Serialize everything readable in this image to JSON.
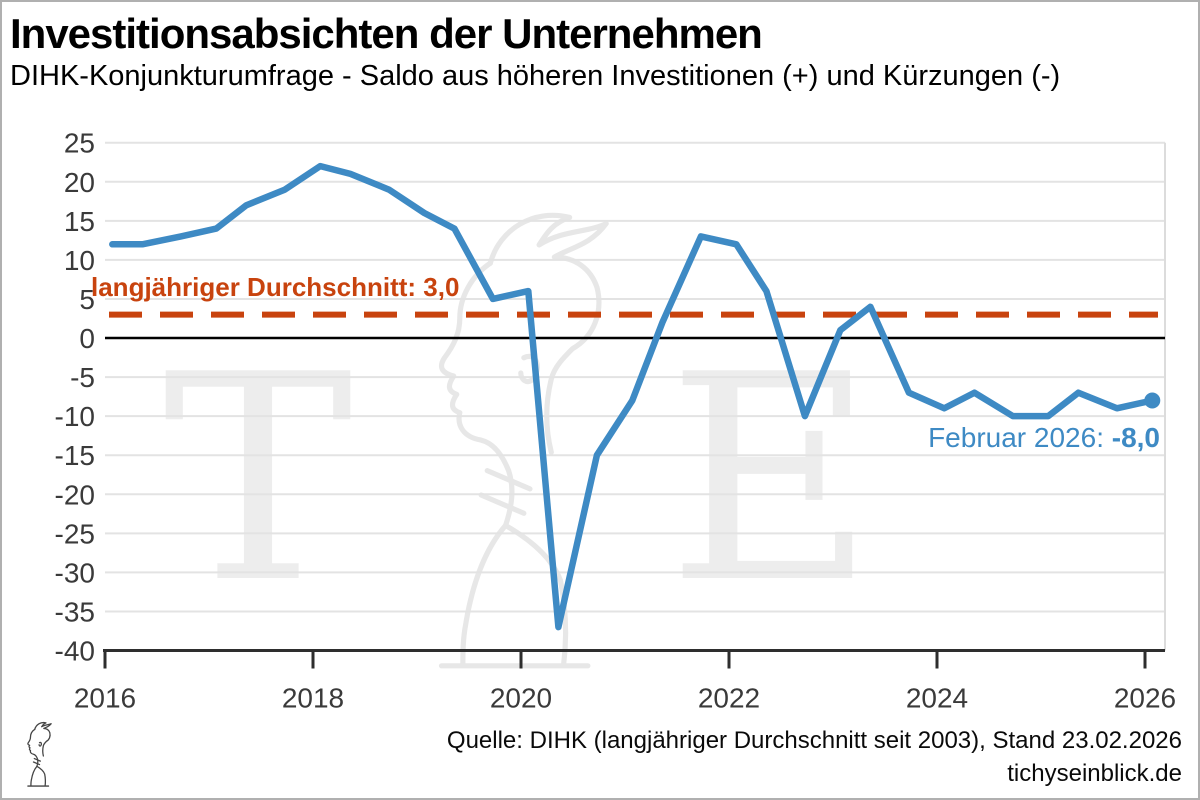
{
  "header": {
    "title": "Investitionsabsichten der Unternehmen",
    "subtitle": "DIHK-Konjunkturumfrage - Saldo aus höheren Investitionen (+) und Kürzungen (-)"
  },
  "chart_data": {
    "type": "line",
    "x": [
      2016.07,
      2016.36,
      2016.73,
      2017.07,
      2017.36,
      2017.73,
      2018.07,
      2018.36,
      2018.73,
      2019.07,
      2019.36,
      2019.73,
      2020.07,
      2020.36,
      2020.73,
      2021.07,
      2021.36,
      2021.73,
      2022.07,
      2022.36,
      2022.73,
      2023.07,
      2023.36,
      2023.73,
      2024.07,
      2024.36,
      2024.73,
      2025.07,
      2025.36,
      2025.73,
      2026.07
    ],
    "values": [
      12,
      12,
      13,
      14,
      17,
      19,
      22,
      21,
      19,
      16,
      14,
      5,
      6,
      -37,
      -15,
      -8,
      2,
      13,
      12,
      6,
      -10,
      1,
      4,
      -7,
      -9,
      -7,
      -10,
      -10,
      -7,
      -9,
      -8
    ],
    "ylim": [
      -40,
      25
    ],
    "yticks": [
      25,
      20,
      15,
      10,
      5,
      0,
      -5,
      -10,
      -15,
      -20,
      -25,
      -30,
      -35,
      -40
    ],
    "xticks": [
      2016,
      2018,
      2020,
      2022,
      2024,
      2026
    ],
    "grid": true,
    "zero_line": true,
    "legend_position": "none",
    "line_color": "#3E8AC4",
    "grid_color": "#E3E3E3",
    "axis_color": "#2E2E2E",
    "tick_label_color": "#3A3A3A",
    "average_line": {
      "value": 3.0,
      "style": "dashed",
      "color": "#C8430E",
      "label": "langjähriger Durchschnitt: 3,0"
    },
    "last_point_label": {
      "prefix": "Februar 2026: ",
      "value": "-8,0"
    }
  },
  "watermark": {
    "letters": [
      "T",
      "E"
    ],
    "color": "#EDEDED"
  },
  "footer": {
    "source": "Quelle: DIHK (langjähriger Durchschnitt seit 2003), Stand 23.02.2026",
    "site": "tichyseinblick.de"
  }
}
